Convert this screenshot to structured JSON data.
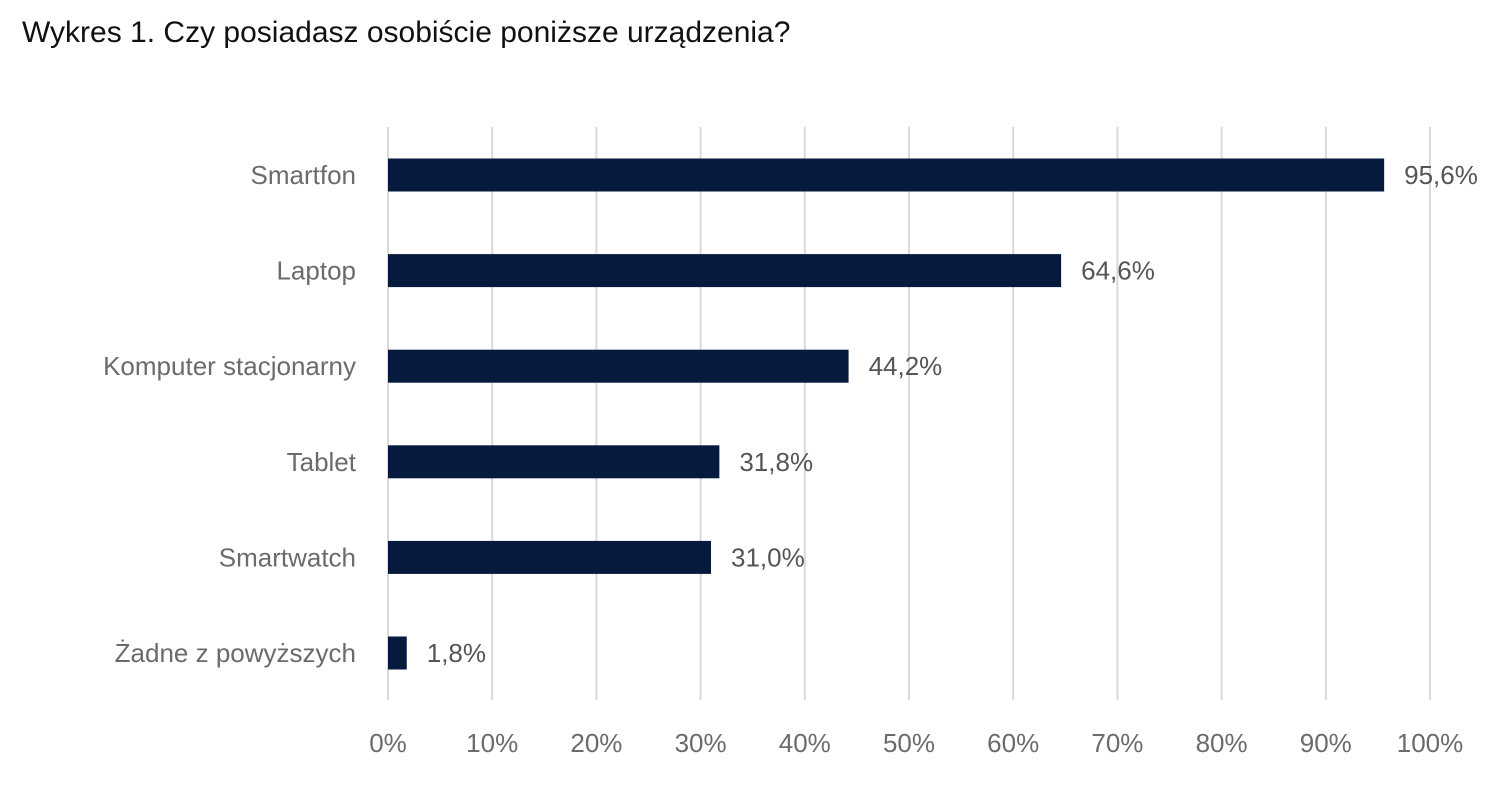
{
  "chart_data": {
    "type": "bar",
    "orientation": "horizontal",
    "title": "Wykres 1. Czy posiadasz osobiście poniższe urządzenia?",
    "categories": [
      "Smartfon",
      "Laptop",
      "Komputer stacjonarny",
      "Tablet",
      "Smartwatch",
      "Żadne z powyższych"
    ],
    "values": [
      95.6,
      64.6,
      44.2,
      31.8,
      31.0,
      1.8
    ],
    "data_labels": [
      "95,6%",
      "64,6%",
      "44,2%",
      "31,8%",
      "31,0%",
      "1,8%"
    ],
    "xlim": [
      0,
      100
    ],
    "xticks": [
      0,
      10,
      20,
      30,
      40,
      50,
      60,
      70,
      80,
      90,
      100
    ],
    "xtick_labels": [
      "0%",
      "10%",
      "20%",
      "30%",
      "40%",
      "50%",
      "60%",
      "70%",
      "80%",
      "90%",
      "100%"
    ],
    "grid": "vertical",
    "legend": "none",
    "bar_color": "#061a3e",
    "grid_color": "#d9d9d9"
  }
}
